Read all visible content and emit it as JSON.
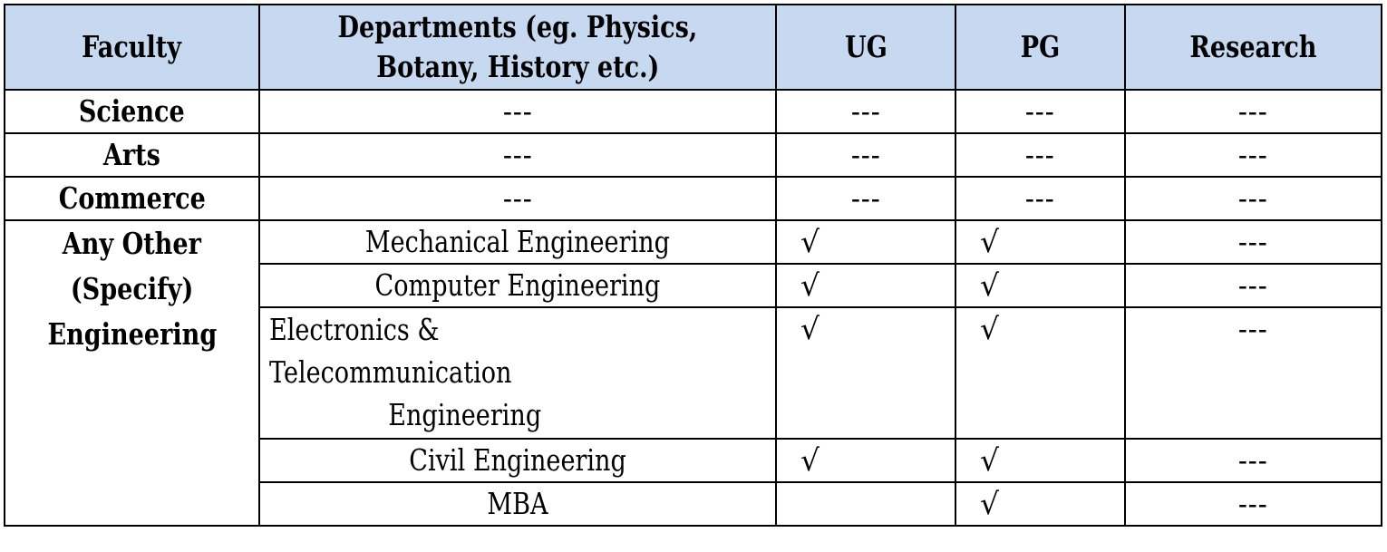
{
  "table": {
    "headers": {
      "faculty": "Faculty",
      "departments_line1": "Departments (eg. Physics,",
      "departments_line2": "Botany, History etc.)",
      "ug": "UG",
      "pg": "PG",
      "research": "Research"
    },
    "rows": [
      {
        "faculty": "Science",
        "department": "---",
        "ug": "---",
        "pg": "---",
        "research": "---"
      },
      {
        "faculty": "Arts",
        "department": "---",
        "ug": "---",
        "pg": "---",
        "research": "---"
      },
      {
        "faculty": "Commerce",
        "department": "---",
        "ug": "---",
        "pg": "---",
        "research": "---"
      }
    ],
    "other_faculty": {
      "line1": "Any Other",
      "line2": "(Specify)",
      "line3": "Engineering"
    },
    "engineering_rows": [
      {
        "department": "Mechanical Engineering",
        "ug": "√",
        "pg": "√",
        "research": "---"
      },
      {
        "department": "Computer Engineering",
        "ug": "√",
        "pg": "√",
        "research": "---"
      },
      {
        "department_line1": "Electronics &",
        "department_line2": "Telecommunication",
        "department_line3": "Engineering",
        "ug": "√",
        "pg": "√",
        "research": "---"
      },
      {
        "department": "Civil Engineering",
        "ug": "√",
        "pg": "√",
        "research": "---"
      },
      {
        "department": "MBA",
        "ug": "",
        "pg": "√",
        "research": "---"
      }
    ]
  }
}
